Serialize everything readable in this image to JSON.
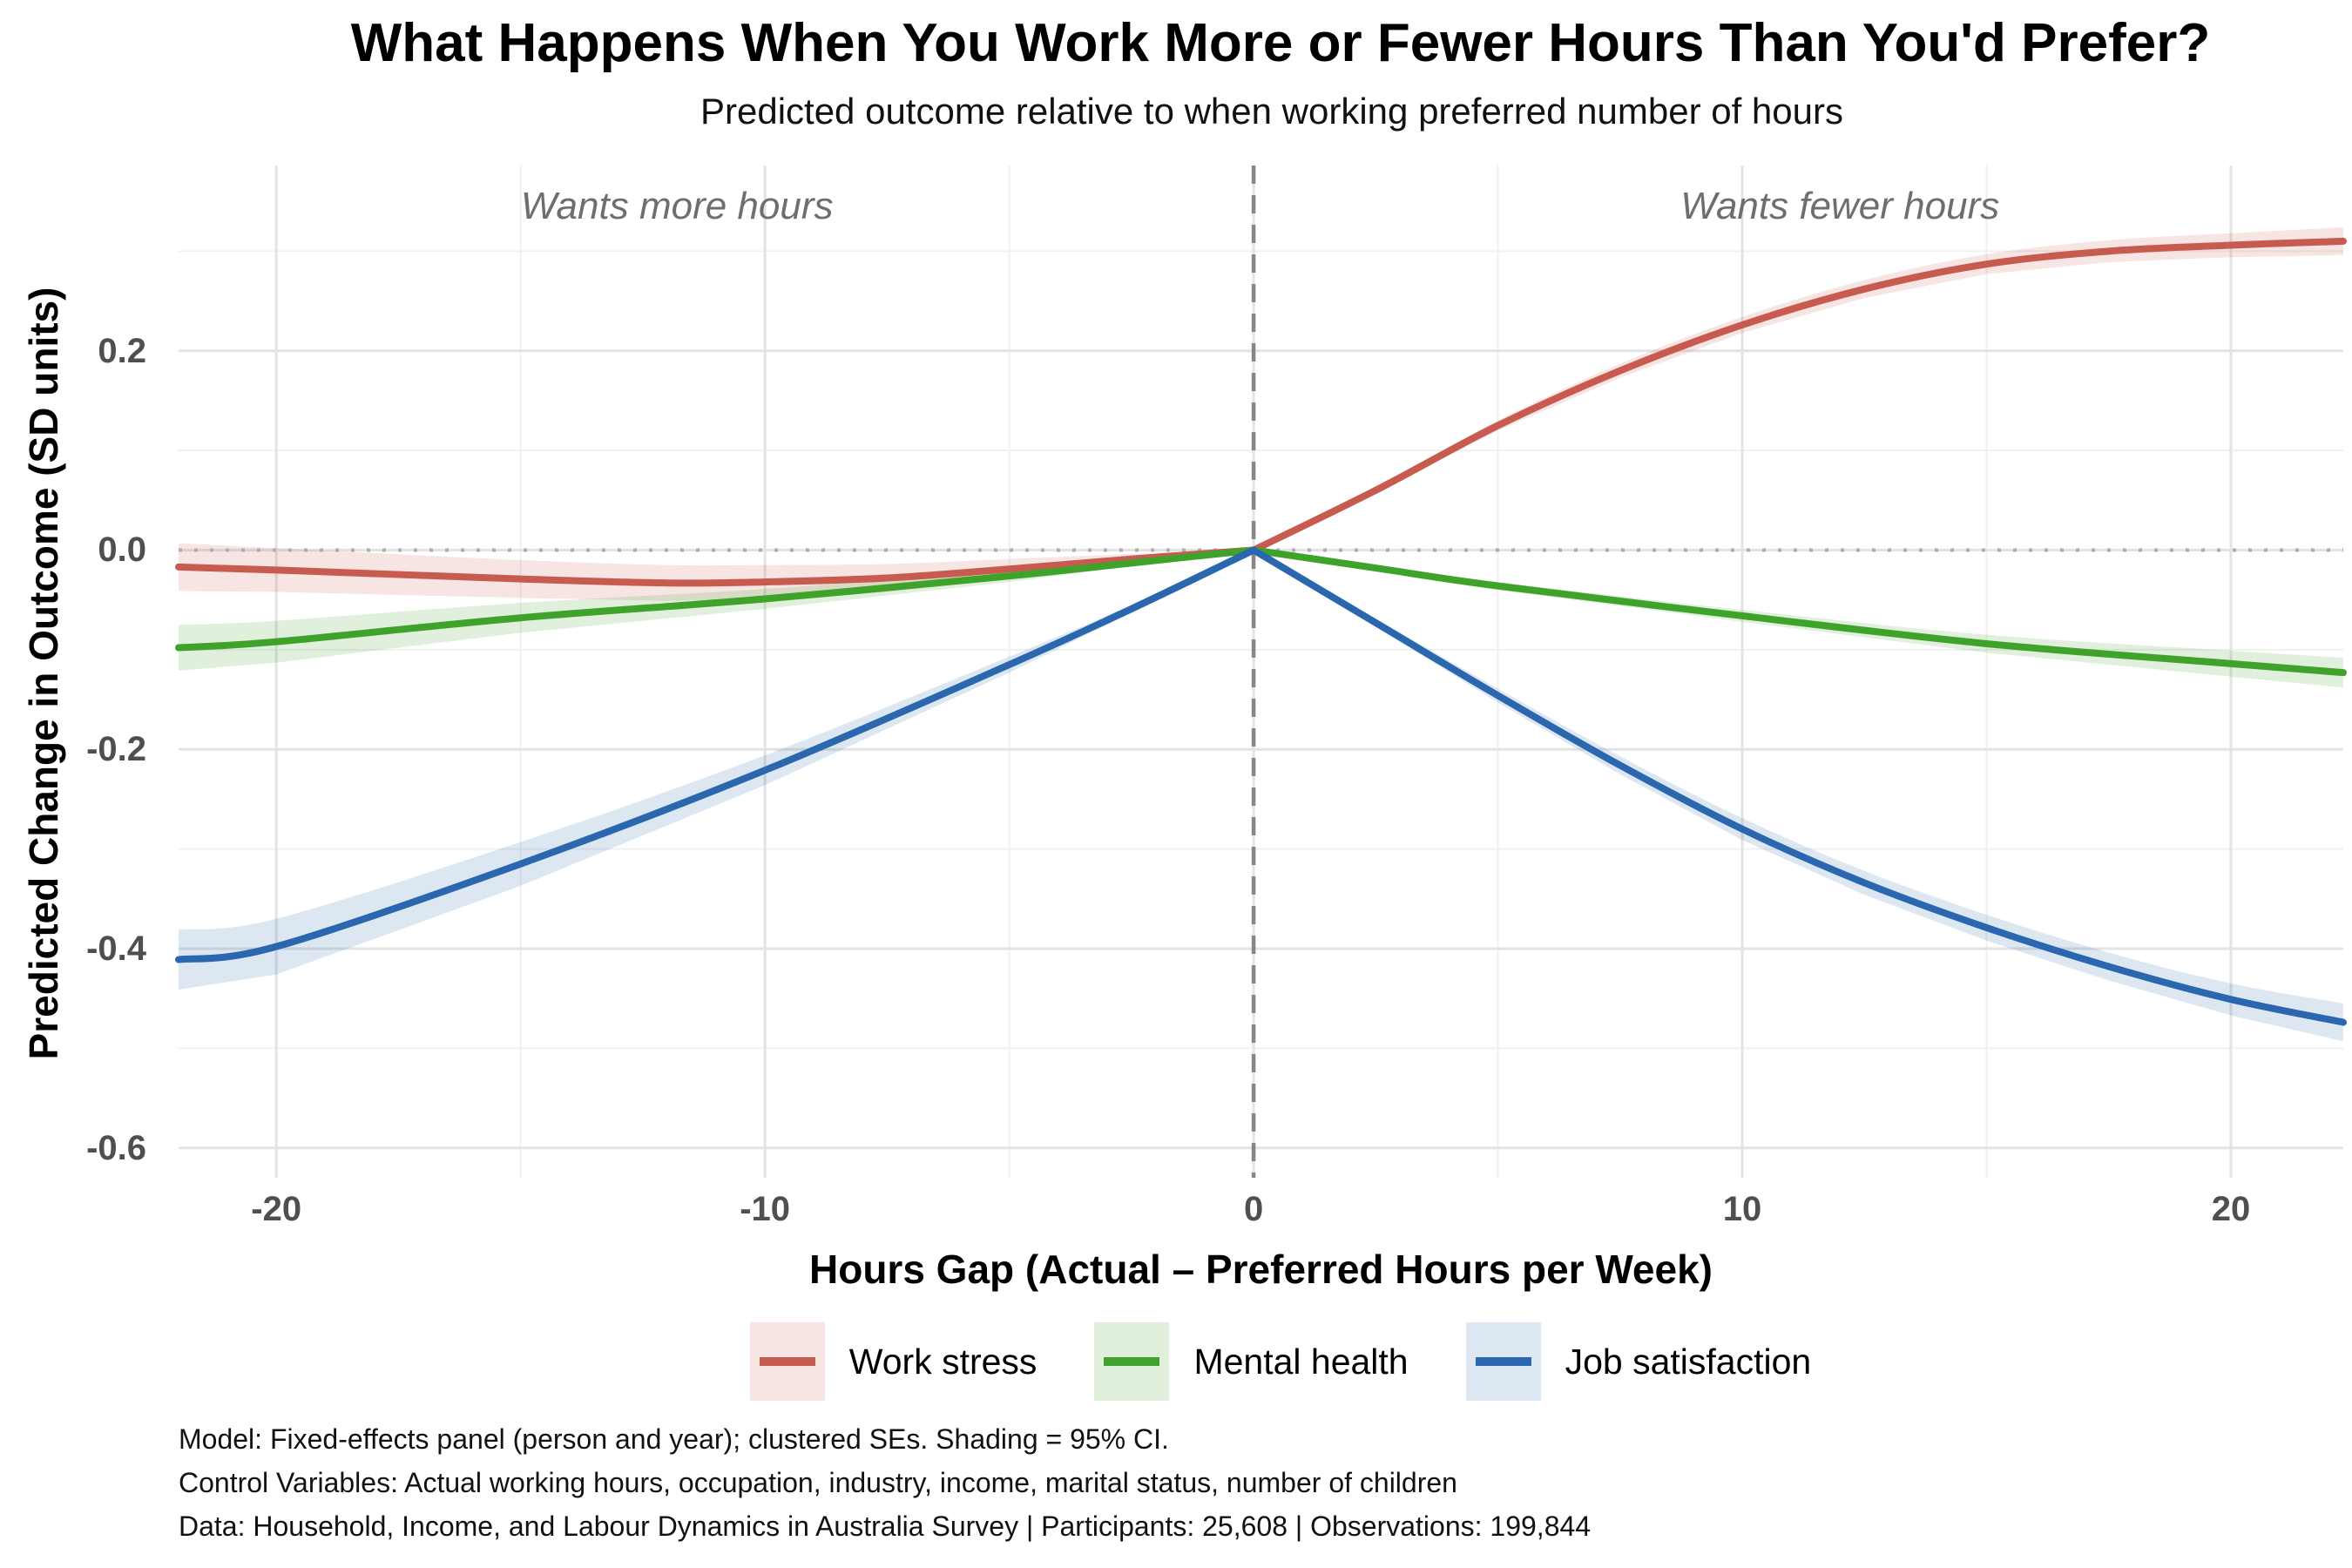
{
  "header": {
    "title": "What Happens When You Work More or Fewer Hours Than You'd Prefer?",
    "subtitle": "Predicted outcome relative to when working preferred number of hours"
  },
  "axes": {
    "y_title": "Predicted Change in Outcome (SD units)",
    "x_title": "Hours Gap (Actual – Preferred Hours per Week)"
  },
  "footnotes": {
    "line1": "Model: Fixed-effects panel (person and year); clustered SEs. Shading = 95% CI.",
    "line2": "Control Variables: Actual working hours, occupation, industry, income, marital status, number of children",
    "line3": "Data: Household, Income, and Labour Dynamics in Australia Survey | Participants: 25,608 | Observations: 199,844"
  },
  "colors": {
    "grid_major": "#E3E3E3",
    "grid_minor": "#F0F0F0",
    "zero_line": "#ADADAD",
    "vline": "#878787",
    "tick_text": "#4F4F4F",
    "annotation_text": "#6E6E6E",
    "work_stress": "#C75B4F",
    "mental_health": "#3FA22B",
    "job_satisfaction": "#2B67AE"
  },
  "chart_data": {
    "type": "line",
    "title": "What Happens When You Work More or Fewer Hours Than You'd Prefer?",
    "xlabel": "Hours Gap (Actual – Preferred Hours per Week)",
    "ylabel": "Predicted Change in Outcome (SD units)",
    "x_domain": [
      -22,
      22.3
    ],
    "y_domain": [
      -0.63,
      0.386
    ],
    "x_major": [
      -20,
      -10,
      0,
      10,
      20
    ],
    "x_minor": [
      -15,
      -5,
      5,
      15
    ],
    "y_major": [
      0.2,
      0.0,
      -0.2,
      -0.4,
      -0.6
    ],
    "y_minor": [
      0.3,
      0.1,
      -0.1,
      -0.3,
      -0.5
    ],
    "x_tick_labels": [
      "-20",
      "-10",
      "0",
      "10",
      "20"
    ],
    "y_tick_labels": [
      "0.2",
      "0.0",
      "-0.2",
      "-0.4",
      "-0.6"
    ],
    "grid": true,
    "legend_position": "bottom",
    "zero_reference_line": 0.0,
    "vertical_reference_line": 0.0,
    "ci_opacity": 0.16,
    "annotations": [
      {
        "text": "Wants more hours",
        "x": -11.8,
        "y": 0.345
      },
      {
        "text": "Wants fewer hours",
        "x": 12.0,
        "y": 0.345
      }
    ],
    "series": [
      {
        "name": "Work stress",
        "color": "#C75B4F",
        "x": [
          -22,
          -20,
          -15,
          -12,
          -10,
          -7.5,
          -5,
          -2.5,
          0,
          2.5,
          5,
          7.5,
          10,
          12.5,
          15,
          17.5,
          20,
          22.3
        ],
        "y": [
          -0.017,
          -0.02,
          -0.029,
          -0.033,
          -0.032,
          -0.028,
          -0.019,
          -0.009,
          0,
          0.06,
          0.125,
          0.18,
          0.226,
          0.262,
          0.287,
          0.3,
          0.306,
          0.31
        ],
        "ci": [
          0.024,
          0.022,
          0.019,
          0.018,
          0.017,
          0.014,
          0.01,
          0.005,
          0.001,
          0.003,
          0.005,
          0.007,
          0.008,
          0.009,
          0.01,
          0.011,
          0.012,
          0.014
        ]
      },
      {
        "name": "Mental health",
        "color": "#3FA22B",
        "x": [
          -22,
          -20,
          -15,
          -10,
          -5,
          -2.5,
          0,
          2.5,
          5,
          10,
          15,
          20,
          22.3
        ],
        "y": [
          -0.098,
          -0.092,
          -0.068,
          -0.049,
          -0.026,
          -0.013,
          0,
          -0.018,
          -0.036,
          -0.066,
          -0.094,
          -0.114,
          -0.123
        ],
        "ci": [
          0.023,
          0.021,
          0.015,
          0.01,
          0.006,
          0.003,
          0.001,
          0.002,
          0.004,
          0.006,
          0.009,
          0.013,
          0.015
        ]
      },
      {
        "name": "Job satisfaction",
        "color": "#2B67AE",
        "x": [
          -22,
          -20,
          -15,
          -10,
          -5,
          -2.5,
          0,
          2.5,
          5,
          7.5,
          10,
          12.5,
          15,
          17.5,
          20,
          22.3
        ],
        "y": [
          -0.411,
          -0.398,
          -0.315,
          -0.221,
          -0.115,
          -0.059,
          0,
          -0.073,
          -0.146,
          -0.216,
          -0.28,
          -0.334,
          -0.379,
          -0.418,
          -0.451,
          -0.474
        ],
        "ci": [
          0.03,
          0.028,
          0.022,
          0.015,
          0.008,
          0.004,
          0.001,
          0.004,
          0.007,
          0.009,
          0.011,
          0.012,
          0.013,
          0.014,
          0.016,
          0.019
        ]
      }
    ]
  }
}
